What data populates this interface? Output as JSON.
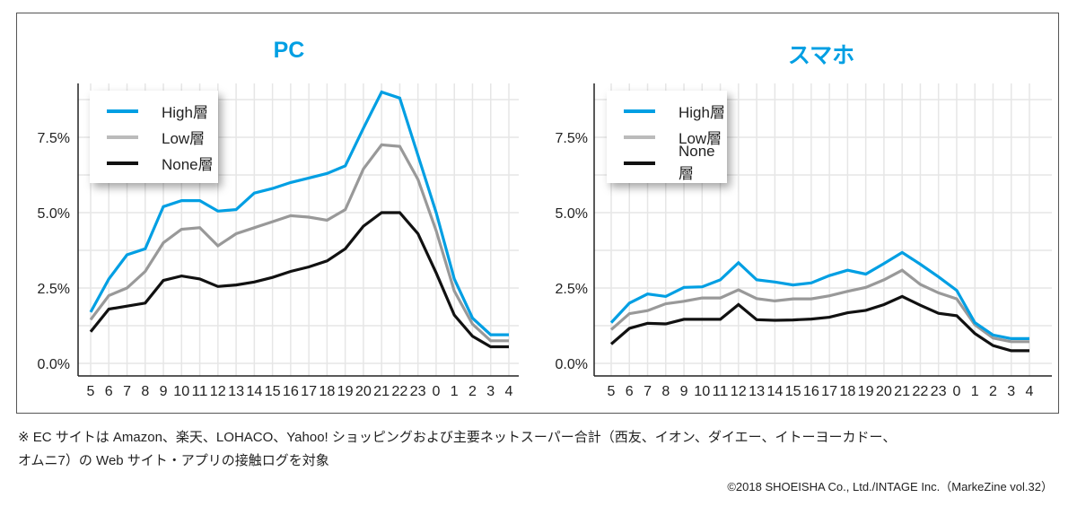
{
  "chart_data": [
    {
      "type": "line",
      "title": "PC",
      "categories": [
        "5",
        "6",
        "7",
        "8",
        "9",
        "10",
        "11",
        "12",
        "13",
        "14",
        "15",
        "16",
        "17",
        "18",
        "19",
        "20",
        "21",
        "22",
        "23",
        "0",
        "1",
        "2",
        "3",
        "4"
      ],
      "yticks": [
        "0.0%",
        "2.5%",
        "5.0%",
        "7.5%"
      ],
      "ylim": [
        0,
        9.3
      ],
      "grid": true,
      "legend_position": "top-left",
      "series": [
        {
          "name": "High層",
          "color": "#009fe3",
          "values": [
            1.7,
            2.8,
            3.6,
            3.8,
            5.2,
            5.4,
            5.4,
            5.05,
            5.1,
            5.65,
            5.8,
            6.0,
            6.15,
            6.3,
            6.55,
            7.8,
            9.0,
            8.8,
            6.9,
            5.0,
            2.8,
            1.5,
            0.95,
            0.95
          ]
        },
        {
          "name": "Low層",
          "color": "#999999",
          "values": [
            1.45,
            2.25,
            2.5,
            3.05,
            4.0,
            4.45,
            4.5,
            3.9,
            4.3,
            4.5,
            4.7,
            4.9,
            4.85,
            4.75,
            5.1,
            6.45,
            7.25,
            7.2,
            6.1,
            4.4,
            2.4,
            1.3,
            0.75,
            0.75
          ]
        },
        {
          "name": "None層",
          "color": "#111111",
          "values": [
            1.05,
            1.8,
            1.9,
            2.0,
            2.75,
            2.9,
            2.8,
            2.55,
            2.6,
            2.7,
            2.85,
            3.05,
            3.2,
            3.4,
            3.8,
            4.55,
            5.0,
            5.0,
            4.3,
            3.0,
            1.6,
            0.9,
            0.55,
            0.55
          ]
        }
      ]
    },
    {
      "type": "line",
      "title": "スマホ",
      "categories": [
        "5",
        "6",
        "7",
        "8",
        "9",
        "10",
        "11",
        "12",
        "13",
        "14",
        "15",
        "16",
        "17",
        "18",
        "19",
        "20",
        "21",
        "22",
        "23",
        "0",
        "1",
        "2",
        "3",
        "4"
      ],
      "yticks": [
        "0.0%",
        "2.5%",
        "5.0%",
        "7.5%"
      ],
      "ylim": [
        0,
        9.3
      ],
      "grid": true,
      "legend_position": "top-left",
      "series": [
        {
          "name": "High層",
          "color": "#009fe3",
          "values": [
            1.35,
            2.0,
            2.3,
            2.22,
            2.52,
            2.54,
            2.77,
            3.34,
            2.77,
            2.7,
            2.6,
            2.67,
            2.91,
            3.09,
            2.96,
            3.31,
            3.68,
            3.29,
            2.87,
            2.42,
            1.35,
            0.94,
            0.82,
            0.82
          ]
        },
        {
          "name": "Low層",
          "color": "#999999",
          "values": [
            1.12,
            1.65,
            1.75,
            1.98,
            2.06,
            2.17,
            2.17,
            2.44,
            2.15,
            2.07,
            2.14,
            2.14,
            2.24,
            2.39,
            2.52,
            2.77,
            3.09,
            2.62,
            2.34,
            2.14,
            1.28,
            0.84,
            0.72,
            0.72
          ]
        },
        {
          "name": "None層",
          "color": "#111111",
          "values": [
            0.64,
            1.16,
            1.33,
            1.31,
            1.46,
            1.46,
            1.46,
            1.95,
            1.45,
            1.43,
            1.44,
            1.47,
            1.53,
            1.68,
            1.76,
            1.95,
            2.22,
            1.93,
            1.66,
            1.58,
            0.99,
            0.59,
            0.42,
            0.42
          ]
        }
      ]
    }
  ],
  "footnote": {
    "line1": "※ EC サイトは Amazon、楽天、LOHACO、Yahoo! ショッピングおよび主要ネットスーパー合計（西友、イオン、ダイエー、イトーヨーカドー、",
    "line2": "オムニ7）の Web サイト・アプリの接触ログを対象"
  },
  "copyright": "©2018 SHOEISHA Co., Ltd./INTAGE Inc.（MarkeZine vol.32）"
}
